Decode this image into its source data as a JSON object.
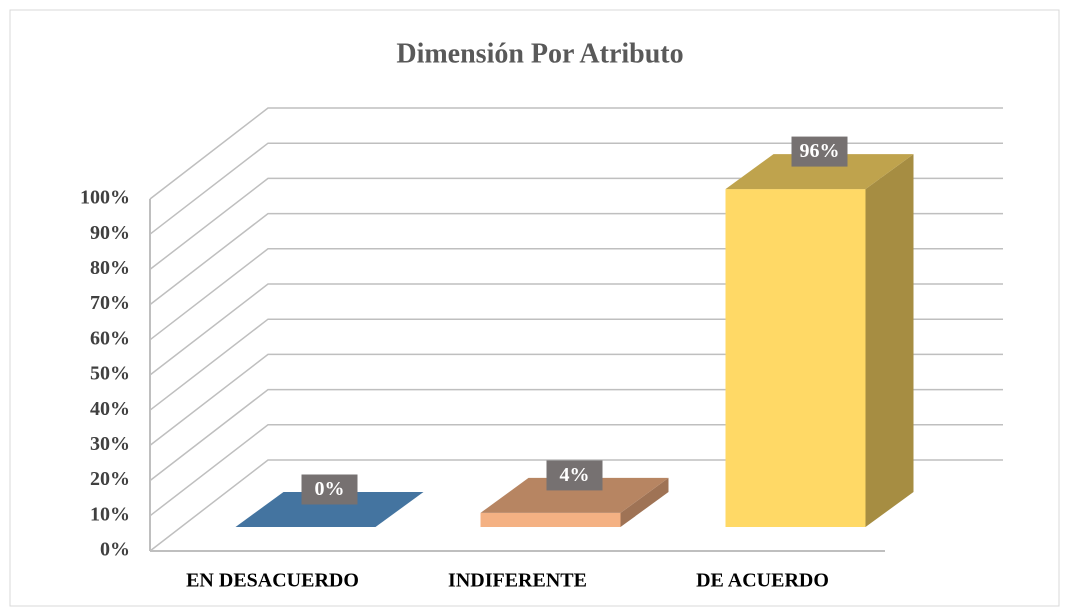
{
  "chart_data": {
    "type": "bar3d",
    "title": "Dimensión Por Atributo",
    "categories": [
      "EN DESACUERDO",
      "INDIFERENTE",
      "DE ACUERDO"
    ],
    "values": [
      0,
      4,
      96
    ],
    "value_labels": [
      "0%",
      "4%",
      "96%"
    ],
    "colors": [
      "#5b9bd5",
      "#f4b183",
      "#ffd966"
    ],
    "ylim": [
      0,
      100
    ],
    "yticks": [
      {
        "value": 0,
        "label": "0%"
      },
      {
        "value": 10,
        "label": "10%"
      },
      {
        "value": 20,
        "label": "20%"
      },
      {
        "value": 30,
        "label": "30%"
      },
      {
        "value": 40,
        "label": "40%"
      },
      {
        "value": 50,
        "label": "50%"
      },
      {
        "value": 60,
        "label": "60%"
      },
      {
        "value": 70,
        "label": "70%"
      },
      {
        "value": 80,
        "label": "80%"
      },
      {
        "value": 90,
        "label": "90%"
      },
      {
        "value": 100,
        "label": "100%"
      }
    ],
    "grid": true
  }
}
